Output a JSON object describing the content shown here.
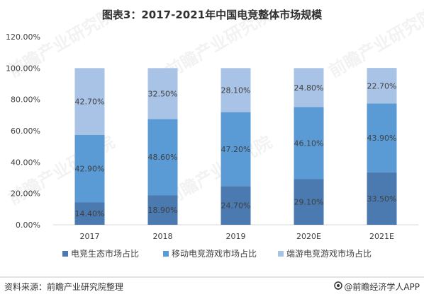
{
  "chart_data": {
    "type": "bar",
    "stacked": true,
    "title": "图表3：2017-2021年中国电竞整体市场规模",
    "categories": [
      "2017",
      "2018",
      "2019",
      "2020E",
      "2021E"
    ],
    "series": [
      {
        "name": "电竞生态市场占比",
        "values": [
          14.4,
          18.9,
          24.7,
          29.1,
          33.5
        ],
        "labels": [
          "14.40%",
          "18.90%",
          "24.70%",
          "29.10%",
          "33.50%"
        ],
        "color": "#4a7ab0"
      },
      {
        "name": "移动电竞游戏市场占比",
        "values": [
          42.9,
          48.6,
          47.2,
          46.1,
          43.9
        ],
        "labels": [
          "42.90%",
          "48.60%",
          "47.20%",
          "46.10%",
          "43.90%"
        ],
        "color": "#5b9bd5"
      },
      {
        "name": "端游电竞游戏市场占比",
        "values": [
          42.7,
          32.5,
          28.1,
          24.8,
          22.7
        ],
        "labels": [
          "42.70%",
          "32.50%",
          "28.10%",
          "24.80%",
          "22.70%"
        ],
        "color": "#a9c3e6"
      }
    ],
    "yticks": [
      "0.00%",
      "20.00%",
      "40.00%",
      "60.00%",
      "80.00%",
      "100.00%",
      "120.00%"
    ],
    "ylim": [
      0,
      120
    ],
    "grid": false,
    "legend_position": "bottom"
  },
  "footer": {
    "source": "资料来源：前瞻产业研究院整理",
    "brand": "@前瞻经济学人APP"
  },
  "watermark": "前瞻产业研究院"
}
